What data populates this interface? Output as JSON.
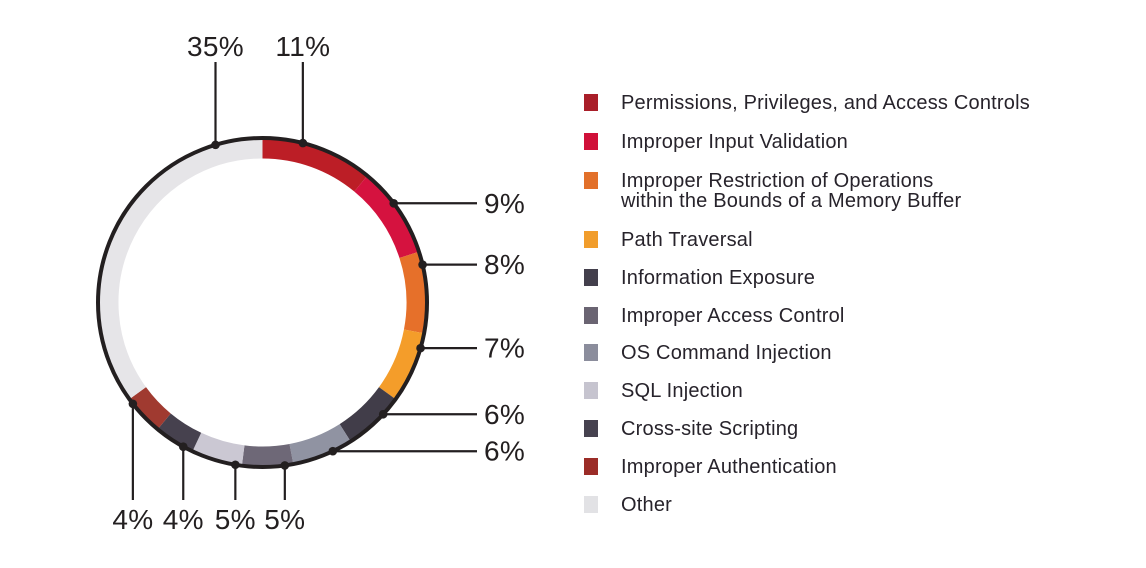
{
  "chart_data": {
    "type": "donut",
    "title": "",
    "legend_position": "right",
    "grid": false,
    "ink_color": "#231F20",
    "background": "#FFFFFF",
    "categories": [
      "Permissions, Privileges, and Access Controls",
      "Improper Input Validation",
      "Improper Restriction of Operations within the Bounds of a Memory Buffer",
      "Path Traversal",
      "Information Exposure",
      "Improper Access Control",
      "OS Command Injection",
      "SQL Injection",
      "Cross-site Scripting",
      "Improper Authentication",
      "Other"
    ],
    "values": [
      11,
      9,
      8,
      7,
      6,
      6,
      5,
      5,
      4,
      4,
      35
    ],
    "value_labels": [
      "11%",
      "9%",
      "8%",
      "7%",
      "6%",
      "6%",
      "5%",
      "5%",
      "4%",
      "4%",
      "35%"
    ],
    "ring_colors": [
      "#BC1E26",
      "#D5123F",
      "#E6702A",
      "#F49D2A",
      "#413D49",
      "#9093A2",
      "#6E6877",
      "#CBC8D3",
      "#46414E",
      "#A03A30",
      "#E6E5E8"
    ],
    "legend": [
      {
        "label": "Permissions, Privileges, and Access Controls",
        "color": "#A91E29"
      },
      {
        "label": "Improper Input Validation",
        "color": "#D01039"
      },
      {
        "label": "Improper Restriction of Operations\nwithin the Bounds of a Memory Buffer",
        "color": "#E2702A"
      },
      {
        "label": "Path Traversal",
        "color": "#F19D2C"
      },
      {
        "label": "Information Exposure",
        "color": "#433F4C"
      },
      {
        "label": "Improper Access Control",
        "color": "#6A6472"
      },
      {
        "label": "OS Command Injection",
        "color": "#8B8D9C"
      },
      {
        "label": "SQL Injection",
        "color": "#C6C4CF"
      },
      {
        "label": "Cross-site Scripting",
        "color": "#46424F"
      },
      {
        "label": "Improper Authentication",
        "color": "#9B2C27"
      },
      {
        "label": "Other",
        "color": "#E2E2E5"
      }
    ],
    "callouts": [
      {
        "segment": 0,
        "side": "top",
        "angle": 14.2
      },
      {
        "segment": 1,
        "side": "right",
        "angle": 52.9
      },
      {
        "segment": 2,
        "side": "right",
        "angle": 76.7
      },
      {
        "segment": 3,
        "side": "right",
        "angle": 106.1
      },
      {
        "segment": 4,
        "side": "right",
        "angle": 132.8
      },
      {
        "segment": 5,
        "side": "right",
        "angle": 154.7
      },
      {
        "segment": 6,
        "side": "bottom",
        "angle": 172.2
      },
      {
        "segment": 7,
        "side": "bottom",
        "angle": 189.5
      },
      {
        "segment": 8,
        "side": "bottom",
        "angle": 208.8
      },
      {
        "segment": 9,
        "side": "bottom",
        "angle": 232.0
      },
      {
        "segment": 10,
        "side": "top",
        "angle": 343.4
      }
    ]
  }
}
